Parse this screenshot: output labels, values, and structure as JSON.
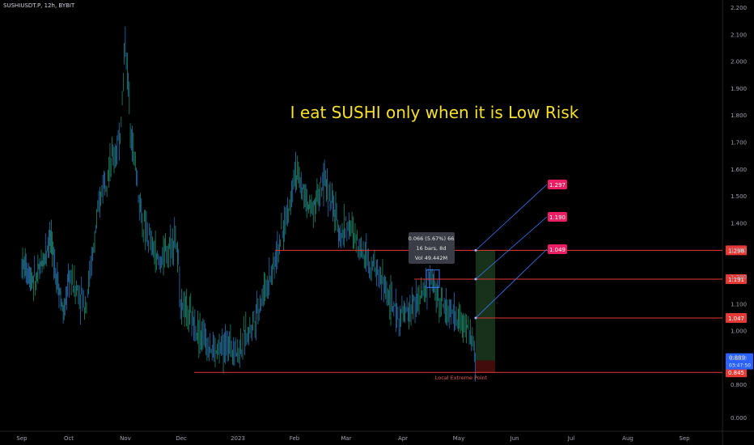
{
  "header": {
    "symbol": "SUSHIUSDT.P, 12h, BYBIT"
  },
  "annotations": {
    "headline": "I eat SUSHI only when it is Low Risk",
    "measure_line1": "0.066 (5.67%) 66",
    "measure_line2": "16 bars, 8d",
    "measure_line3": "Vol 49.442M",
    "local_extreme": "Local Extreme Point"
  },
  "colors": {
    "background": "#000000",
    "candle": "#2a6fb0",
    "candle_alt": "#1f8a6a",
    "level_line": "#e53935",
    "target_badge": "#e91e63",
    "price_badge": "#2962ff",
    "headline": "#f5e02b",
    "profit_zone": "#1b3a1f",
    "loss_zone": "#4a0d0d"
  },
  "chart_data": {
    "type": "candlestick",
    "x_ticks": [
      "Sep",
      "Oct",
      "Nov",
      "Dec",
      "2023",
      "Feb",
      "Mar",
      "Apr",
      "May",
      "Jun",
      "Jul",
      "Aug",
      "Sep"
    ],
    "y_ticks": [
      "2.200",
      "2.100",
      "2.000",
      "1.900",
      "1.800",
      "1.700",
      "1.600",
      "1.500",
      "1.400",
      "1.300",
      "1.200",
      "1.100",
      "1.000",
      "0.900",
      "0.800",
      "0.000"
    ],
    "ylim": [
      0.0,
      2.2
    ],
    "price_series": [
      [
        0.0,
        1.25
      ],
      [
        0.3,
        1.18
      ],
      [
        0.6,
        1.35
      ],
      [
        0.9,
        1.05
      ],
      [
        1.0,
        1.2
      ],
      [
        1.3,
        1.1
      ],
      [
        1.6,
        1.55
      ],
      [
        1.9,
        1.7
      ],
      [
        2.0,
        2.08
      ],
      [
        2.1,
        1.75
      ],
      [
        2.3,
        1.4
      ],
      [
        2.6,
        1.25
      ],
      [
        2.9,
        1.35
      ],
      [
        3.0,
        1.1
      ],
      [
        3.3,
        1.0
      ],
      [
        3.6,
        0.92
      ],
      [
        3.9,
        0.95
      ],
      [
        4.0,
        0.92
      ],
      [
        4.3,
        1.05
      ],
      [
        4.6,
        1.22
      ],
      [
        4.9,
        1.45
      ],
      [
        5.0,
        1.6
      ],
      [
        5.3,
        1.45
      ],
      [
        5.6,
        1.55
      ],
      [
        5.9,
        1.35
      ],
      [
        6.0,
        1.4
      ],
      [
        6.3,
        1.3
      ],
      [
        6.6,
        1.2
      ],
      [
        6.9,
        1.05
      ],
      [
        7.0,
        1.05
      ],
      [
        7.3,
        1.12
      ],
      [
        7.5,
        1.19
      ],
      [
        7.7,
        1.1
      ],
      [
        7.9,
        1.05
      ],
      [
        8.0,
        1.04
      ],
      [
        8.2,
        1.0
      ],
      [
        8.3,
        0.88
      ]
    ],
    "levels": [
      {
        "label": "1.298",
        "value": 1.298
      },
      {
        "label": "1.191",
        "value": 1.191
      },
      {
        "label": "1.047",
        "value": 1.047
      },
      {
        "label": "0.845",
        "value": 0.845
      }
    ],
    "targets": [
      "1.297",
      "1.190",
      "1.049"
    ],
    "current_price": {
      "value": "0.889",
      "countdown": "03:47:50"
    }
  }
}
